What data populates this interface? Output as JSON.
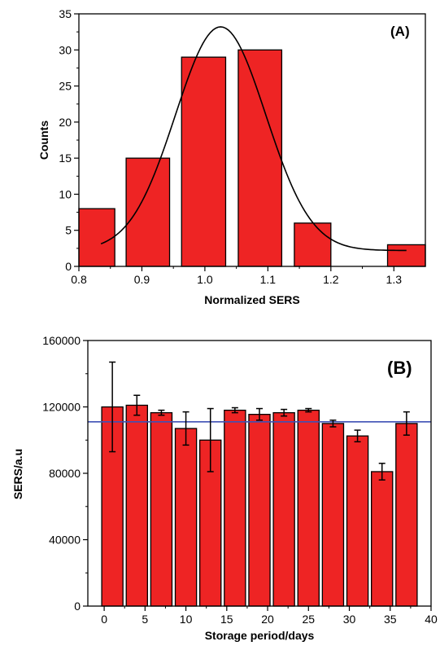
{
  "chart_data": [
    {
      "type": "bar",
      "panel_label": "(A)",
      "xlabel": "Normalized SERS",
      "ylabel": "Counts",
      "xlim": [
        0.8,
        1.35
      ],
      "ylim": [
        0,
        35
      ],
      "xticks": [
        "0.8",
        "0.9",
        "1.0",
        "1.1",
        "1.2",
        "1.3"
      ],
      "yticks": [
        "0",
        "5",
        "10",
        "15",
        "20",
        "25",
        "30",
        "35"
      ],
      "bins": [
        {
          "x0": 0.8,
          "x1": 0.857,
          "count": 8
        },
        {
          "x0": 0.875,
          "x1": 0.944,
          "count": 15
        },
        {
          "x0": 0.963,
          "x1": 1.033,
          "count": 29
        },
        {
          "x0": 1.053,
          "x1": 1.122,
          "count": 30
        },
        {
          "x0": 1.142,
          "x1": 1.2,
          "count": 6
        },
        {
          "x0": 1.29,
          "x1": 1.35,
          "count": 3
        }
      ],
      "fit_curve": {
        "type": "gaussian",
        "peak_x": 1.025,
        "peak_y": 33.2,
        "x_start": 0.835,
        "x_end": 1.32,
        "width": 0.0717,
        "offset": 2.2
      },
      "bar_color": "#ee2424",
      "curve_color": "#000000"
    },
    {
      "type": "bar",
      "panel_label": "(B)",
      "xlabel": "Storage period/days",
      "ylabel": "SERS/a.u",
      "xlim": [
        -2,
        40
      ],
      "ylim": [
        0,
        160000
      ],
      "xticks": [
        "0",
        "5",
        "10",
        "15",
        "20",
        "25",
        "30",
        "35",
        "40"
      ],
      "yticks": [
        "0",
        "40000",
        "80000",
        "120000",
        "160000"
      ],
      "bar_width": 2.6,
      "bars": [
        {
          "x": 1,
          "value": 120000,
          "error": 27000
        },
        {
          "x": 4,
          "value": 121000,
          "error": 6000
        },
        {
          "x": 7,
          "value": 116500,
          "error": 1500
        },
        {
          "x": 10,
          "value": 107000,
          "error": 10000
        },
        {
          "x": 13,
          "value": 100000,
          "error": 19000
        },
        {
          "x": 16,
          "value": 118000,
          "error": 1500
        },
        {
          "x": 19,
          "value": 115500,
          "error": 3500
        },
        {
          "x": 22,
          "value": 116500,
          "error": 2000
        },
        {
          "x": 25,
          "value": 118000,
          "error": 1000
        },
        {
          "x": 28,
          "value": 110000,
          "error": 2000
        },
        {
          "x": 31,
          "value": 102500,
          "error": 3500
        },
        {
          "x": 34,
          "value": 81000,
          "error": 5000
        },
        {
          "x": 37,
          "value": 110000,
          "error": 7000
        }
      ],
      "reference_line": 111000,
      "bar_color": "#ee2424",
      "reference_line_color": "#3f51b5"
    }
  ]
}
